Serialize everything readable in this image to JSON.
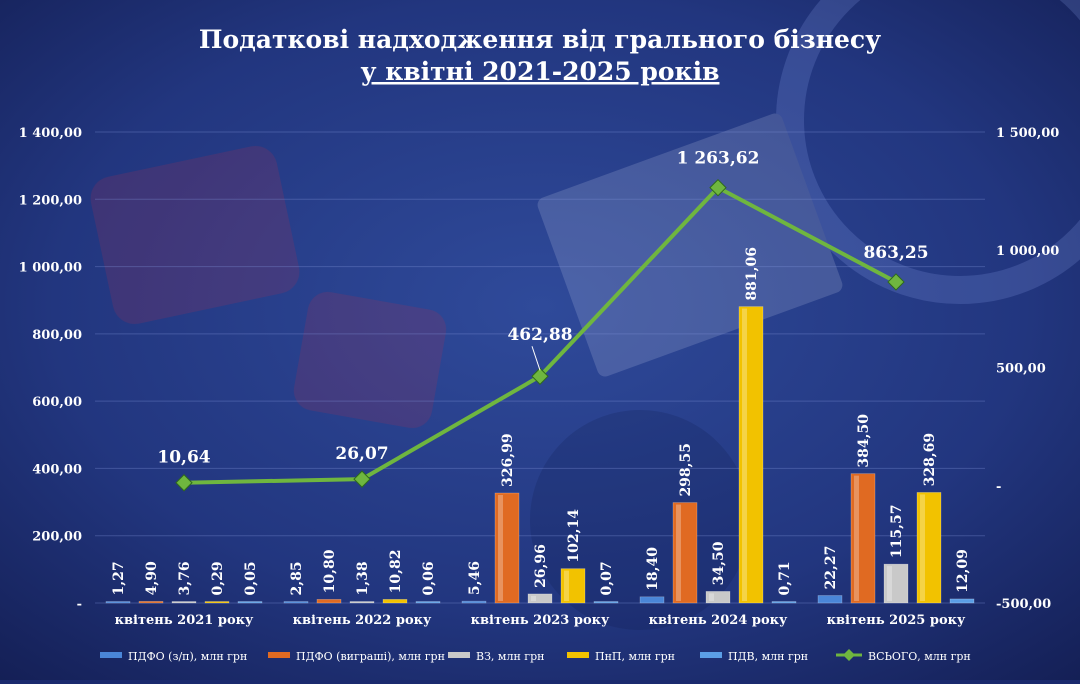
{
  "chart_data": {
    "type": "bar",
    "title": {
      "line1": "Податкові надходження від грального бізнесу",
      "line2": "у квітні 2021-2025 років"
    },
    "categories": [
      "квітень 2021 року",
      "квітень 2022 року",
      "квітень 2023 року",
      "квітень 2024 року",
      "квітень 2025 року"
    ],
    "series": [
      {
        "name": "ПДФО (з/п), млн грн",
        "color": "#4a86d8",
        "values": [
          1.27,
          2.85,
          5.46,
          18.4,
          22.27
        ],
        "labels": [
          "1,27",
          "2,85",
          "5,46",
          "18,40",
          "22,27"
        ]
      },
      {
        "name": "ПДФО (виграші), млн грн",
        "color": "#e06a22",
        "values": [
          4.9,
          10.8,
          326.99,
          298.55,
          384.5
        ],
        "labels": [
          "4,90",
          "10,80",
          "326,99",
          "298,55",
          "384,50"
        ]
      },
      {
        "name": "ВЗ, млн грн",
        "color": "#c9c9c9",
        "values": [
          3.76,
          1.38,
          26.96,
          34.5,
          115.57
        ],
        "labels": [
          "3,76",
          "1,38",
          "26,96",
          "34,50",
          "115,57"
        ]
      },
      {
        "name": "ПнП, млн грн",
        "color": "#f2c200",
        "values": [
          0.29,
          10.82,
          102.14,
          881.06,
          328.69
        ],
        "labels": [
          "0,29",
          "10,82",
          "102,14",
          "881,06",
          "328,69"
        ]
      },
      {
        "name": "ПДВ, млн грн",
        "color": "#5b9ee6",
        "values": [
          0.05,
          0.06,
          0.07,
          0.71,
          12.09
        ],
        "labels": [
          "0,05",
          "0,06",
          "0,07",
          "0,71",
          "12,09"
        ]
      }
    ],
    "total": {
      "name": "ВСЬОГО, млн грн",
      "color": "#6fb63f",
      "values": [
        10.64,
        26.07,
        462.88,
        1263.62,
        863.25
      ],
      "labels": [
        "10,64",
        "26,07",
        "462,88",
        "1 263,62",
        "863,25"
      ]
    },
    "left_axis": {
      "ylim": [
        0,
        1400
      ],
      "ticks": [
        0,
        200,
        400,
        600,
        800,
        1000,
        1200,
        1400
      ],
      "tick_labels": [
        "-",
        "200,00",
        "400,00",
        "600,00",
        "800,00",
        "1 000,00",
        "1 200,00",
        "1 400,00"
      ]
    },
    "right_axis": {
      "ylim": [
        -500,
        1500
      ],
      "ticks": [
        -500,
        0,
        500,
        1000,
        1500
      ],
      "tick_labels": [
        "-500,00",
        "-",
        "500,00",
        "1 000,00",
        "1 500,00"
      ]
    },
    "grid": true,
    "legend_position": "bottom"
  }
}
